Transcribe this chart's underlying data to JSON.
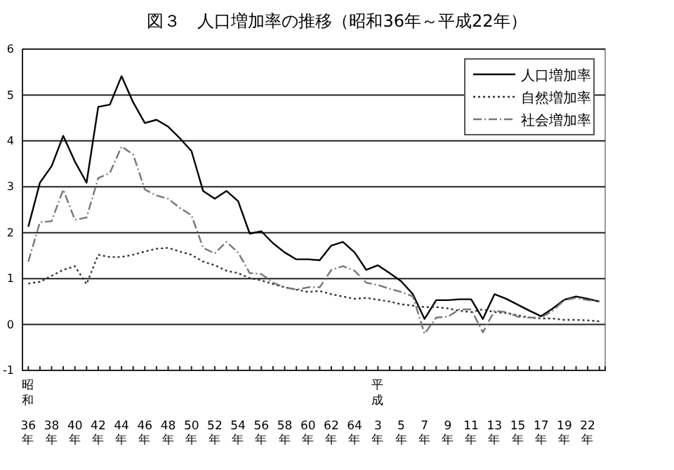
{
  "chart_data": {
    "type": "line",
    "title": "図３　人口増加率の推移（昭和36年～平成22年）",
    "annotations": [
      {
        "text": "昭和",
        "x": "36年"
      },
      {
        "text": "平成",
        "x": "3年"
      }
    ],
    "categories": [
      "36年",
      null,
      "38年",
      null,
      "40年",
      null,
      "42年",
      null,
      "44年",
      null,
      "46年",
      null,
      "48年",
      null,
      "50年",
      null,
      "52年",
      null,
      "54年",
      null,
      "56年",
      null,
      "58年",
      null,
      "60年",
      null,
      "62年",
      null,
      "64年",
      null,
      "3年",
      null,
      "5年",
      null,
      "7年",
      null,
      "9年",
      null,
      "11年",
      null,
      "13年",
      null,
      "15年",
      null,
      "17年",
      null,
      "19年",
      null,
      "22年",
      null
    ],
    "series": [
      {
        "name": "人口増加率",
        "color": "#000000",
        "line_style": "solid",
        "values": [
          2.13,
          3.09,
          3.45,
          4.11,
          3.55,
          3.09,
          4.74,
          4.79,
          5.41,
          4.84,
          4.39,
          4.46,
          4.31,
          4.06,
          3.78,
          2.91,
          2.74,
          2.91,
          2.69,
          1.98,
          2.03,
          1.77,
          1.57,
          1.42,
          1.42,
          1.4,
          1.72,
          1.8,
          1.57,
          1.19,
          1.29,
          1.12,
          0.94,
          0.66,
          0.12,
          0.53,
          0.53,
          0.55,
          0.55,
          0.12,
          0.66,
          0.56,
          0.43,
          0.3,
          0.18,
          0.35,
          0.54,
          0.61,
          0.56,
          0.5
        ]
      },
      {
        "name": "自然増加率",
        "color": "#333333",
        "line_style": "dotted",
        "values": [
          0.89,
          0.93,
          1.06,
          1.19,
          1.27,
          0.88,
          1.52,
          1.47,
          1.47,
          1.52,
          1.59,
          1.65,
          1.67,
          1.59,
          1.52,
          1.37,
          1.29,
          1.17,
          1.12,
          1.01,
          0.96,
          0.88,
          0.81,
          0.76,
          0.71,
          0.73,
          0.66,
          0.61,
          0.56,
          0.58,
          0.54,
          0.5,
          0.44,
          0.41,
          0.38,
          0.38,
          0.35,
          0.3,
          0.27,
          0.33,
          0.27,
          0.25,
          0.2,
          0.15,
          0.13,
          0.13,
          0.1,
          0.1,
          0.09,
          0.07
        ]
      },
      {
        "name": "社会増加率",
        "color": "#777777",
        "line_style": "dashed",
        "values": [
          1.37,
          2.23,
          2.25,
          2.94,
          2.28,
          2.33,
          3.19,
          3.3,
          3.88,
          3.7,
          2.94,
          2.81,
          2.74,
          2.54,
          2.38,
          1.67,
          1.55,
          1.8,
          1.57,
          1.12,
          1.1,
          0.91,
          0.81,
          0.76,
          0.81,
          0.81,
          1.19,
          1.27,
          1.17,
          0.91,
          0.86,
          0.78,
          0.71,
          0.61,
          -0.2,
          0.15,
          0.17,
          0.33,
          0.33,
          -0.17,
          0.3,
          0.27,
          0.17,
          0.15,
          0.15,
          0.3,
          0.53,
          0.58,
          0.53,
          0.51
        ]
      }
    ],
    "ylim": [
      -1,
      6
    ],
    "yticks": [
      -1,
      0,
      1,
      2,
      3,
      4,
      5,
      6
    ],
    "grid": "y",
    "legend": "top right",
    "marker": "none"
  }
}
